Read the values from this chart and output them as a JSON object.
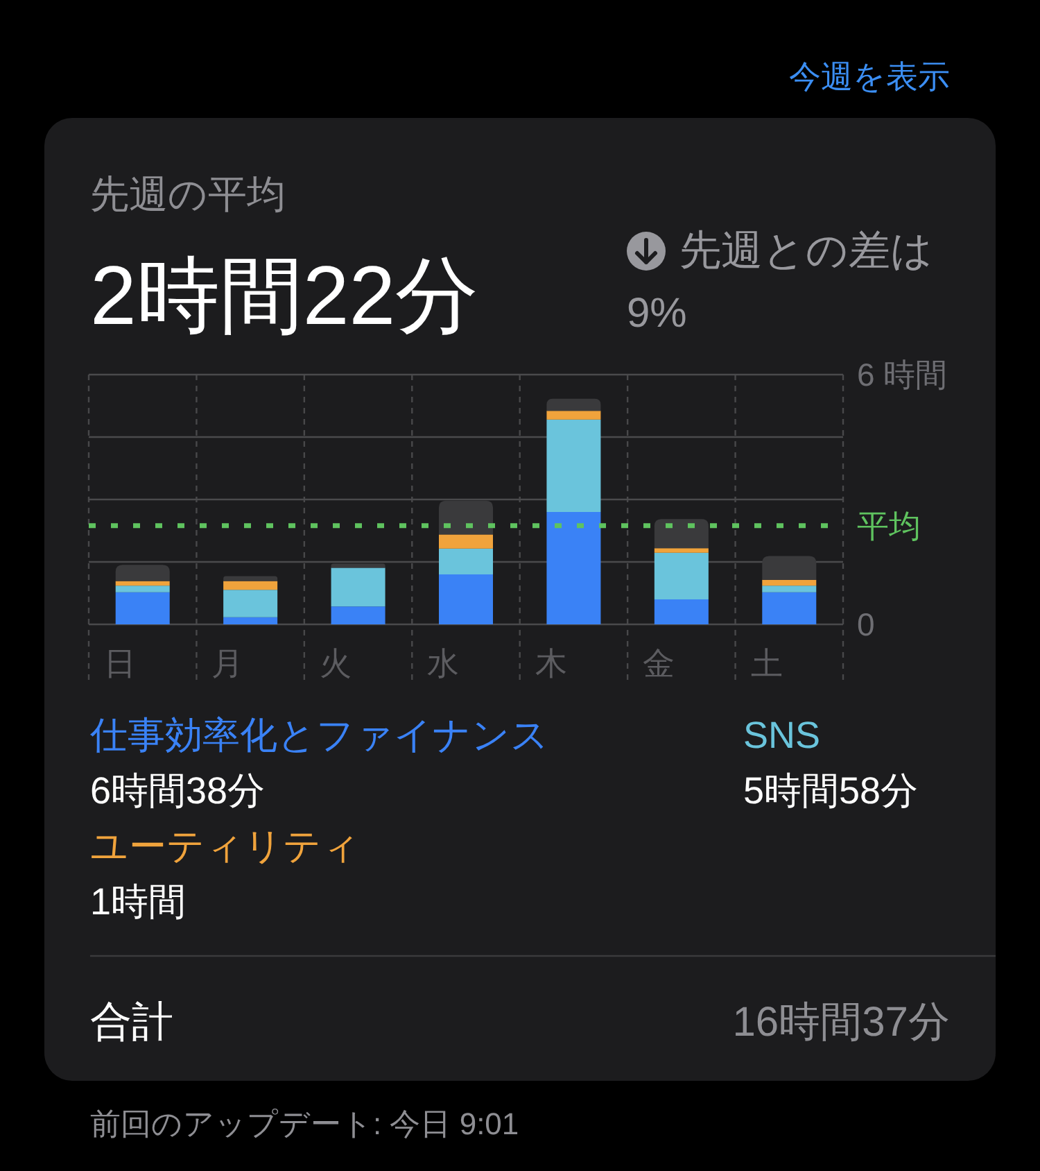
{
  "chart_data": {
    "type": "bar",
    "stacked": true,
    "title": "先週の平均",
    "subtitle": "2時間22分",
    "categories": [
      "日",
      "月",
      "火",
      "水",
      "木",
      "金",
      "土"
    ],
    "series": [
      {
        "name": "仕事効率化とファイナンス",
        "color": "#3a82f6",
        "values": [
          0.77,
          0.17,
          0.43,
          1.2,
          2.7,
          0.6,
          0.77
        ]
      },
      {
        "name": "SNS",
        "color": "#6ac4dc",
        "values": [
          0.16,
          0.66,
          0.93,
          0.62,
          2.22,
          1.12,
          0.16
        ]
      },
      {
        "name": "ユーティリティ",
        "color": "#f0a33c",
        "values": [
          0.11,
          0.21,
          0,
          0.34,
          0.21,
          0.11,
          0.14
        ]
      },
      {
        "color": "#3a3a3c",
        "values": [
          0.39,
          0.12,
          0.1,
          0.81,
          0.29,
          0.7,
          0.57
        ]
      }
    ],
    "ylim": [
      0,
      6
    ],
    "yticks": [
      0,
      {
        "value": 1.5,
        "label": null
      },
      {
        "value": 3,
        "label": null
      },
      {
        "value": 4.5,
        "label": null
      },
      {
        "value": 6,
        "label": "6 時間"
      }
    ],
    "grid": true,
    "ref_lines": [
      {
        "axis": "y",
        "value": 2.37,
        "label": "平均",
        "color": "#5fc35f",
        "line_style": "dashed"
      }
    ],
    "legend": "bottom",
    "annotations": [
      "今週を表示",
      "先週との差は 9%",
      "6時間38分",
      "5時間58分",
      "1時間",
      "合計",
      "16時間37分",
      "前回のアップデート: 今日 9:01"
    ]
  }
}
